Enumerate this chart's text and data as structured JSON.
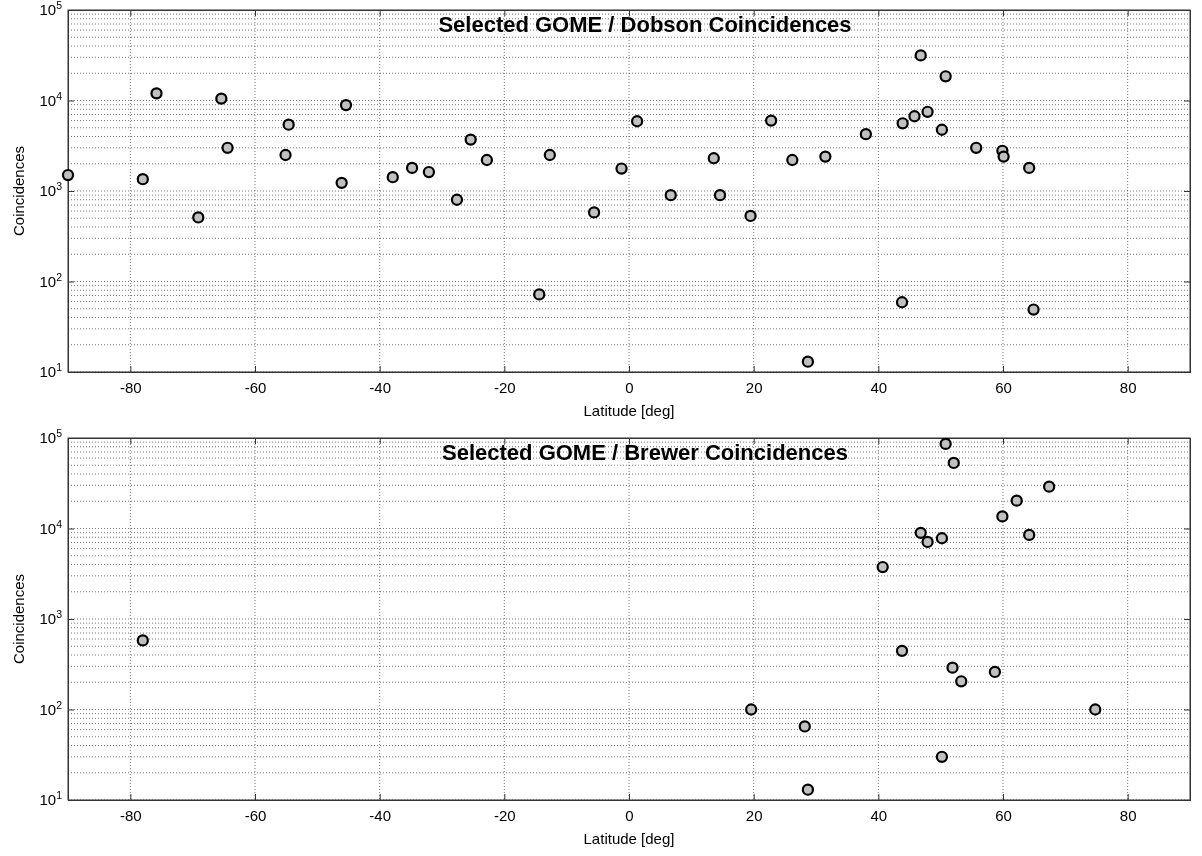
{
  "chart_data": [
    {
      "type": "scatter",
      "title": "Selected GOME / Dobson Coincidences",
      "xlabel": "Latitude [deg]",
      "ylabel": "Coincidences",
      "log": "y",
      "grid": true,
      "marker": "circle",
      "xlim": [
        -90,
        90
      ],
      "xticks": [
        -80,
        -60,
        -40,
        -20,
        0,
        20,
        40,
        60,
        80
      ],
      "ylim": [
        10,
        100000
      ],
      "yticks": [
        {
          "value": 10,
          "label": "10$^{1}$"
        },
        {
          "value": 100,
          "label": "10$^{2}$"
        },
        {
          "value": 1000,
          "label": "10$^{3}$"
        },
        {
          "value": 10000,
          "label": "10$^{4}$"
        },
        {
          "value": 100000,
          "label": "10$^{5}$"
        }
      ],
      "series": [
        {
          "color": "#c0c0c0",
          "x": [
            -90,
            -78,
            -75.8,
            -69.1,
            -65.4,
            -64.4,
            -54.6,
            -55.1,
            -46.1,
            -45.4,
            -37.9,
            -34.8,
            -32.1,
            -27.6,
            -25.4,
            -22.8,
            -14.4,
            -12.7,
            -5.6,
            -1.2,
            1.3,
            6.7,
            13.6,
            14.6,
            19.5,
            22.8,
            26.2,
            31.5,
            28.7,
            38,
            43.9,
            43.8,
            45.8,
            47.9,
            46.8,
            50.8,
            50.2,
            55.7,
            59.9,
            60.1,
            64.2,
            64.9
          ],
          "values": [
            1500,
            1350,
            12000,
            510,
            10500,
            3000,
            5400,
            2500,
            1230,
            8900,
            1420,
            1800,
            1620,
            800,
            3700,
            2200,
            72,
            2500,
            580,
            1770,
            5900,
            900,
            2300,
            900,
            530,
            6000,
            2200,
            2400,
            13,
            4250,
            5600,
            59,
            6700,
            7500,
            31500,
            18500,
            4750,
            3000,
            2780,
            2400,
            1800,
            49
          ]
        }
      ]
    },
    {
      "type": "scatter",
      "title": "Selected GOME / Brewer Coincidences",
      "xlabel": "Latitude [deg]",
      "ylabel": "Coincidences",
      "log": "y",
      "grid": true,
      "marker": "circle",
      "xlim": [
        -90,
        90
      ],
      "xticks": [
        -80,
        -60,
        -40,
        -20,
        0,
        20,
        40,
        60,
        80
      ],
      "ylim": [
        10,
        100000
      ],
      "yticks": [
        {
          "value": 10,
          "label": "10$^{1}$"
        },
        {
          "value": 100,
          "label": "10$^{2}$"
        },
        {
          "value": 1000,
          "label": "10$^{3}$"
        },
        {
          "value": 10000,
          "label": "10$^{4}$"
        },
        {
          "value": 100000,
          "label": "10$^{5}$"
        }
      ],
      "series": [
        {
          "color": "#c0c0c0",
          "x": [
            -78,
            50.8,
            52.1,
            67.4,
            62.2,
            59.9,
            46.8,
            47.9,
            50.2,
            64.2,
            40.7,
            43.8,
            51.9,
            53.3,
            58.7,
            19.6,
            74.8,
            28.2,
            50.2,
            28.7
          ],
          "values": [
            580,
            86000,
            53000,
            29000,
            20300,
            13600,
            8950,
            7100,
            7800,
            8500,
            3750,
            445,
            290,
            205,
            260,
            100,
            100,
            65,
            30,
            13
          ]
        }
      ]
    }
  ]
}
